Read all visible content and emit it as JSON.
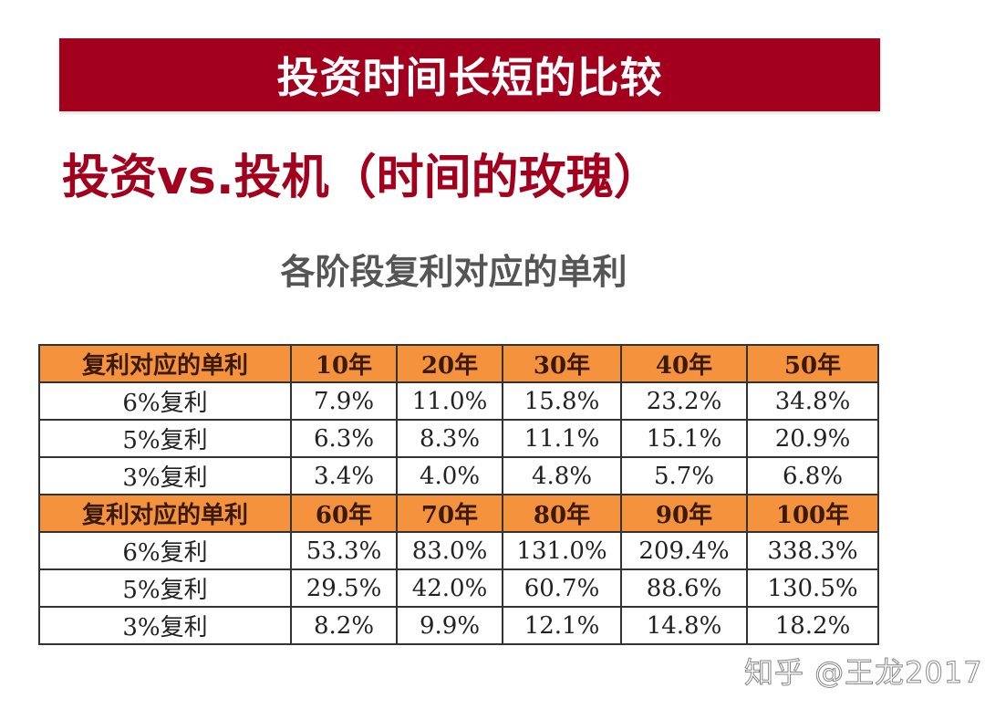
{
  "banner": {
    "title": "投资时间长短的比较"
  },
  "subtitle": "投资vs.投机（时间的玫瑰）",
  "table_caption": "各阶段复利对应的单利",
  "colors": {
    "banner": "#a3001e",
    "subtitle": "#a3001e",
    "header_row": "#f5923e",
    "caption": "#555555"
  },
  "table": {
    "blocks": [
      {
        "header": [
          "复利对应的单利",
          "10年",
          "20年",
          "30年",
          "40年",
          "50年"
        ],
        "rows": [
          [
            "6%复利",
            "7.9%",
            "11.0%",
            "15.8%",
            "23.2%",
            "34.8%"
          ],
          [
            "5%复利",
            "6.3%",
            "8.3%",
            "11.1%",
            "15.1%",
            "20.9%"
          ],
          [
            "3%复利",
            "3.4%",
            "4.0%",
            "4.8%",
            "5.7%",
            "6.8%"
          ]
        ]
      },
      {
        "header": [
          "复利对应的单利",
          "60年",
          "70年",
          "80年",
          "90年",
          "100年"
        ],
        "rows": [
          [
            "6%复利",
            "53.3%",
            "83.0%",
            "131.0%",
            "209.4%",
            "338.3%"
          ],
          [
            "5%复利",
            "29.5%",
            "42.0%",
            "60.7%",
            "88.6%",
            "130.5%"
          ],
          [
            "3%复利",
            "8.2%",
            "9.9%",
            "12.1%",
            "14.8%",
            "18.2%"
          ]
        ]
      }
    ]
  },
  "watermark": "知乎 @王龙2017"
}
